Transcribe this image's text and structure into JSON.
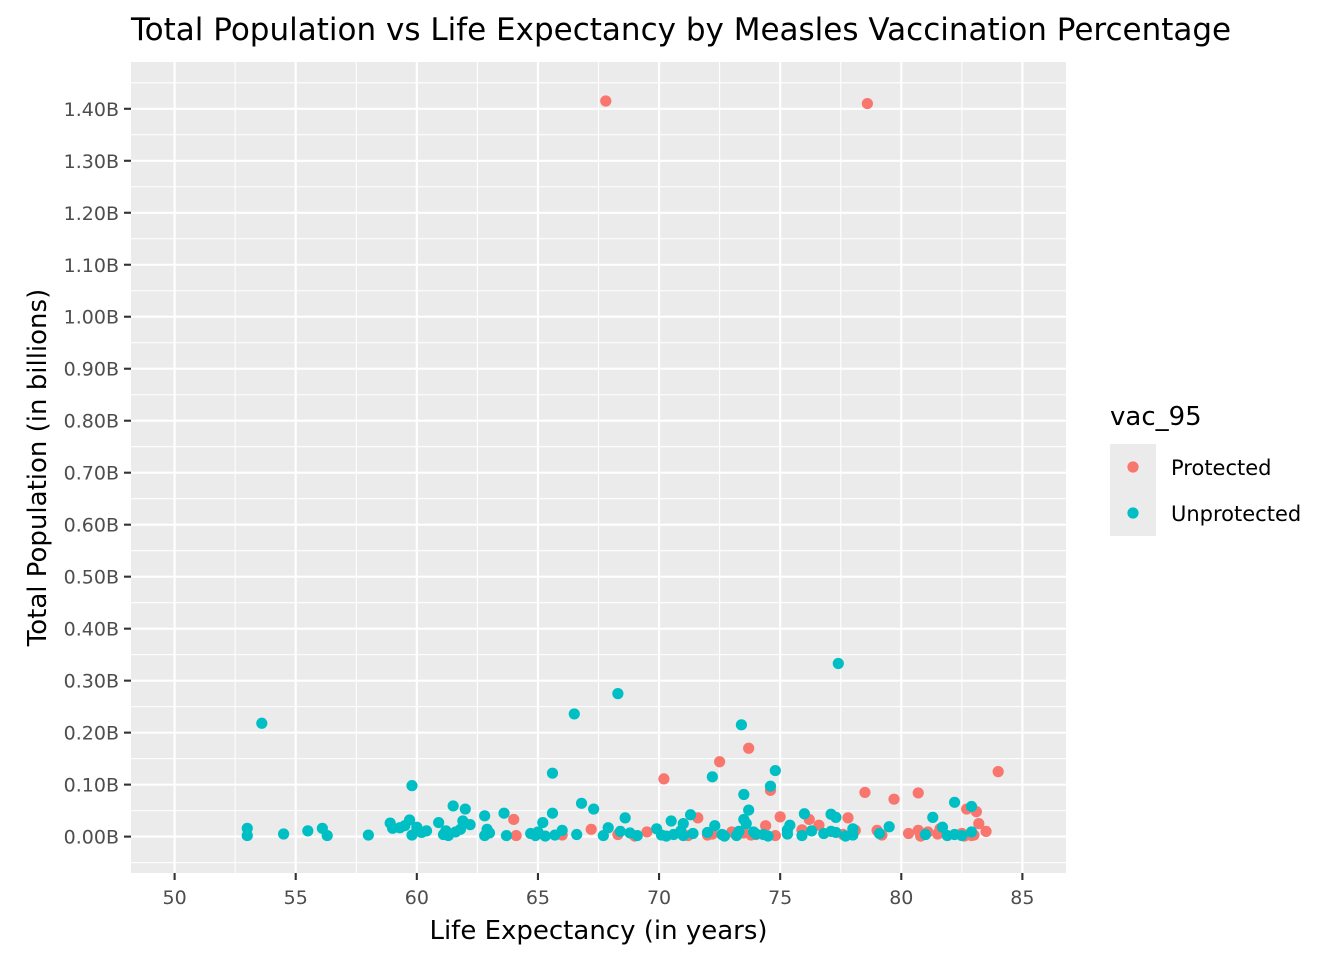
{
  "chart_data": {
    "type": "scatter",
    "title": "Total Population vs Life Expectancy by Measles Vaccination Percentage",
    "xlabel": "Life Expectancy (in years)",
    "ylabel": "Total Population (in billions)",
    "xlim": [
      48.2,
      86.8
    ],
    "ylim": [
      -0.07,
      1.49
    ],
    "x_ticks": [
      50,
      55,
      60,
      65,
      70,
      75,
      80,
      85
    ],
    "x_tick_labels": [
      "50",
      "55",
      "60",
      "65",
      "70",
      "75",
      "80",
      "85"
    ],
    "y_ticks": [
      0,
      0.1,
      0.2,
      0.3,
      0.4,
      0.5,
      0.6,
      0.7,
      0.8,
      0.9,
      1.0,
      1.1,
      1.2,
      1.3,
      1.4
    ],
    "y_tick_labels": [
      "0.00B",
      "0.10B",
      "0.20B",
      "0.30B",
      "0.40B",
      "0.50B",
      "0.60B",
      "0.70B",
      "0.80B",
      "0.90B",
      "1.00B",
      "1.10B",
      "1.20B",
      "1.30B",
      "1.40B"
    ],
    "grid": true,
    "legend": {
      "title": "vac_95",
      "position": "right"
    },
    "series": [
      {
        "name": "Protected",
        "color": "#F8766D",
        "points": [
          [
            67.8,
            1.415
          ],
          [
            78.6,
            1.41
          ],
          [
            73.7,
            0.17
          ],
          [
            72.5,
            0.144
          ],
          [
            84.0,
            0.125
          ],
          [
            70.2,
            0.111
          ],
          [
            74.6,
            0.089
          ],
          [
            78.5,
            0.085
          ],
          [
            80.7,
            0.084
          ],
          [
            79.7,
            0.072
          ],
          [
            82.7,
            0.053
          ],
          [
            83.1,
            0.048
          ],
          [
            75.0,
            0.038
          ],
          [
            71.6,
            0.036
          ],
          [
            77.8,
            0.036
          ],
          [
            64.0,
            0.033
          ],
          [
            76.2,
            0.033
          ],
          [
            83.2,
            0.025
          ],
          [
            76.6,
            0.022
          ],
          [
            74.4,
            0.021
          ],
          [
            81.6,
            0.015
          ],
          [
            67.2,
            0.014
          ],
          [
            75.9,
            0.013
          ],
          [
            78.1,
            0.012
          ],
          [
            79.0,
            0.012
          ],
          [
            80.7,
            0.012
          ],
          [
            83.5,
            0.01
          ],
          [
            69.5,
            0.009
          ],
          [
            73.0,
            0.009
          ],
          [
            81.1,
            0.009
          ],
          [
            73.5,
            0.007
          ],
          [
            80.3,
            0.006
          ],
          [
            82.5,
            0.006
          ],
          [
            72.2,
            0.005
          ],
          [
            81.5,
            0.005
          ],
          [
            68.3,
            0.004
          ],
          [
            74.0,
            0.004
          ],
          [
            77.6,
            0.004
          ],
          [
            66.0,
            0.003
          ],
          [
            72.0,
            0.003
          ],
          [
            73.8,
            0.003
          ],
          [
            79.2,
            0.003
          ],
          [
            83.0,
            0.003
          ],
          [
            64.1,
            0.002
          ],
          [
            71.2,
            0.002
          ],
          [
            74.8,
            0.002
          ],
          [
            82.9,
            0.002
          ],
          [
            69.0,
            0.001
          ],
          [
            80.8,
            0.001
          ],
          [
            82.6,
            0.001
          ]
        ]
      },
      {
        "name": "Unprotected",
        "color": "#00BFC4",
        "points": [
          [
            77.4,
            0.333
          ],
          [
            68.3,
            0.275
          ],
          [
            66.5,
            0.236
          ],
          [
            53.6,
            0.218
          ],
          [
            73.4,
            0.215
          ],
          [
            74.8,
            0.127
          ],
          [
            65.6,
            0.122
          ],
          [
            72.2,
            0.115
          ],
          [
            59.8,
            0.098
          ],
          [
            74.6,
            0.097
          ],
          [
            73.5,
            0.081
          ],
          [
            66.8,
            0.064
          ],
          [
            82.2,
            0.066
          ],
          [
            61.5,
            0.059
          ],
          [
            82.9,
            0.058
          ],
          [
            62.0,
            0.053
          ],
          [
            67.3,
            0.053
          ],
          [
            73.7,
            0.051
          ],
          [
            63.6,
            0.045
          ],
          [
            76.0,
            0.044
          ],
          [
            65.6,
            0.045
          ],
          [
            71.3,
            0.042
          ],
          [
            62.8,
            0.04
          ],
          [
            77.1,
            0.043
          ],
          [
            77.3,
            0.037
          ],
          [
            81.3,
            0.037
          ],
          [
            68.6,
            0.036
          ],
          [
            73.5,
            0.033
          ],
          [
            70.5,
            0.03
          ],
          [
            61.9,
            0.03
          ],
          [
            59.7,
            0.032
          ],
          [
            65.2,
            0.027
          ],
          [
            58.9,
            0.026
          ],
          [
            60.9,
            0.027
          ],
          [
            71.0,
            0.025
          ],
          [
            73.6,
            0.025
          ],
          [
            62.2,
            0.023
          ],
          [
            75.4,
            0.022
          ],
          [
            59.5,
            0.021
          ],
          [
            72.3,
            0.021
          ],
          [
            79.5,
            0.019
          ],
          [
            81.7,
            0.018
          ],
          [
            56.1,
            0.016
          ],
          [
            53.0,
            0.016
          ],
          [
            59.0,
            0.016
          ],
          [
            59.3,
            0.017
          ],
          [
            67.9,
            0.017
          ],
          [
            60.0,
            0.018
          ],
          [
            61.8,
            0.014
          ],
          [
            62.9,
            0.014
          ],
          [
            69.9,
            0.015
          ],
          [
            75.3,
            0.013
          ],
          [
            78.0,
            0.015
          ],
          [
            55.5,
            0.011
          ],
          [
            60.4,
            0.011
          ],
          [
            61.2,
            0.011
          ],
          [
            66.0,
            0.012
          ],
          [
            70.9,
            0.011
          ],
          [
            76.3,
            0.011
          ],
          [
            77.1,
            0.01
          ],
          [
            54.5,
            0.005
          ],
          [
            56.3,
            0.002
          ],
          [
            58.0,
            0.003
          ],
          [
            53.0,
            0.002
          ],
          [
            59.8,
            0.003
          ],
          [
            60.2,
            0.008
          ],
          [
            61.1,
            0.004
          ],
          [
            61.3,
            0.002
          ],
          [
            61.6,
            0.009
          ],
          [
            62.8,
            0.002
          ],
          [
            63.0,
            0.007
          ],
          [
            63.7,
            0.002
          ],
          [
            64.7,
            0.006
          ],
          [
            64.9,
            0.002
          ],
          [
            65.3,
            0.001
          ],
          [
            65.7,
            0.003
          ],
          [
            66.6,
            0.004
          ],
          [
            67.7,
            0.002
          ],
          [
            68.4,
            0.01
          ],
          [
            68.8,
            0.007
          ],
          [
            69.1,
            0.002
          ],
          [
            70.3,
            0.001
          ],
          [
            70.6,
            0.004
          ],
          [
            71.0,
            0.002
          ],
          [
            71.4,
            0.006
          ],
          [
            72.0,
            0.008
          ],
          [
            72.7,
            0.001
          ],
          [
            73.2,
            0.002
          ],
          [
            73.9,
            0.009
          ],
          [
            74.3,
            0.004
          ],
          [
            74.5,
            0.001
          ],
          [
            75.3,
            0.005
          ],
          [
            75.9,
            0.002
          ],
          [
            76.8,
            0.006
          ],
          [
            77.3,
            0.008
          ],
          [
            77.7,
            0.001
          ],
          [
            78.0,
            0.003
          ],
          [
            79.1,
            0.006
          ],
          [
            81.0,
            0.004
          ],
          [
            81.9,
            0.002
          ],
          [
            82.2,
            0.004
          ],
          [
            82.5,
            0.002
          ],
          [
            82.9,
            0.009
          ],
          [
            70.1,
            0.003
          ],
          [
            74.0,
            0.005
          ],
          [
            65.0,
            0.009
          ],
          [
            72.6,
            0.004
          ],
          [
            73.3,
            0.01
          ]
        ]
      }
    ]
  }
}
